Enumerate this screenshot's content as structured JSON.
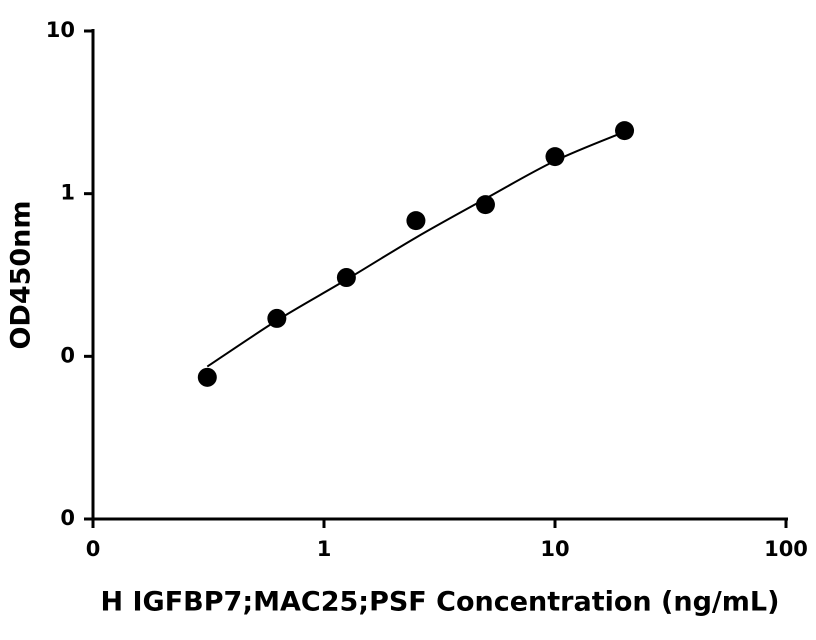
{
  "chart_data": {
    "type": "scatter",
    "x_label": "H IGFBP7;MAC25;PSF Concentration (ng/mL)",
    "y_label": "OD450nm",
    "xscale": "log",
    "yscale": "log",
    "xlim": [
      0.1,
      100
    ],
    "ylim": [
      0.01,
      10
    ],
    "xticks": [
      {
        "value": 0.1,
        "label": "0"
      },
      1,
      10,
      100
    ],
    "yticks": [
      {
        "value": 0.01,
        "label": "0"
      },
      {
        "value": 0.1,
        "label": "0"
      },
      1,
      10
    ],
    "color": "#000000",
    "x": [
      0.3125,
      0.625,
      1.25,
      2.5,
      5,
      10,
      20
    ],
    "values": [
      0.0743,
      0.171,
      0.305,
      0.683,
      0.856,
      1.69,
      2.44
    ],
    "fit": {
      "x": [
        0.3125,
        0.625,
        1.25,
        2.5,
        5,
        10,
        20
      ],
      "values": [
        0.0865,
        0.166,
        0.296,
        0.537,
        0.931,
        1.59,
        2.4
      ]
    }
  }
}
